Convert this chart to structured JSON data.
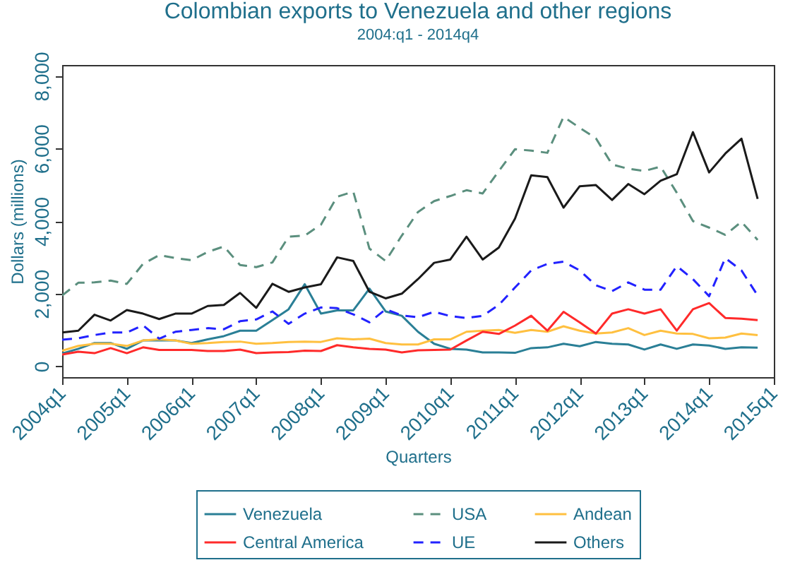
{
  "chart_data": {
    "type": "line",
    "title": "Colombian exports to Venezuela and other regions",
    "subtitle": "2004:q1 - 2014q4",
    "xlabel": "Quarters",
    "ylabel": "Dollars (millions)",
    "categories": [
      "2004q1",
      null,
      null,
      null,
      "2005q1",
      null,
      null,
      null,
      "2006q1",
      null,
      null,
      null,
      "2007q1",
      null,
      null,
      null,
      "2008q1",
      null,
      null,
      null,
      "2009q1",
      null,
      null,
      null,
      "2010q1",
      null,
      null,
      null,
      "2011q1",
      null,
      null,
      null,
      "2012q1",
      null,
      null,
      null,
      "2013q1",
      null,
      null,
      null,
      "2014q1",
      null,
      null,
      null,
      "2015q1"
    ],
    "series": [
      {
        "name": "Venezuela",
        "color": "#2a7f96",
        "line_style": "solid",
        "values": [
          350,
          480,
          640,
          640,
          480,
          710,
          710,
          710,
          640,
          740,
          830,
          980,
          980,
          1270,
          1570,
          2260,
          1450,
          1540,
          1540,
          2140,
          1510,
          1390,
          950,
          620,
          480,
          460,
          380,
          380,
          370,
          500,
          520,
          620,
          550,
          670,
          620,
          600,
          460,
          600,
          480,
          600,
          570,
          480,
          520,
          510,
          null
        ]
      },
      {
        "name": "USA",
        "color": "#5b8f7e",
        "line_style": "dashed",
        "values": [
          1950,
          2300,
          2310,
          2360,
          2270,
          2820,
          3060,
          2980,
          2920,
          3150,
          3300,
          2790,
          2730,
          2860,
          3570,
          3600,
          3900,
          4670,
          4810,
          3240,
          2900,
          3600,
          4250,
          4550,
          4690,
          4850,
          4760,
          5380,
          5980,
          5940,
          5880,
          6870,
          6570,
          6280,
          5560,
          5440,
          5380,
          5500,
          4780,
          4000,
          3820,
          3620,
          3980,
          3480,
          null
        ]
      },
      {
        "name": "Andean",
        "color": "#ffc040",
        "line_style": "solid",
        "values": [
          430,
          560,
          620,
          620,
          560,
          710,
          740,
          710,
          620,
          640,
          670,
          680,
          620,
          640,
          670,
          680,
          670,
          770,
          740,
          760,
          640,
          600,
          600,
          740,
          740,
          950,
          980,
          1000,
          920,
          1000,
          950,
          1100,
          980,
          900,
          930,
          1050,
          860,
          980,
          900,
          890,
          770,
          790,
          900,
          860,
          null
        ]
      },
      {
        "name": "Central America",
        "color": "#ff2a2a",
        "line_style": "solid",
        "values": [
          320,
          400,
          360,
          500,
          360,
          520,
          450,
          450,
          450,
          420,
          420,
          460,
          360,
          380,
          390,
          430,
          420,
          580,
          520,
          480,
          460,
          380,
          440,
          450,
          460,
          710,
          950,
          890,
          1120,
          1390,
          980,
          1500,
          1210,
          900,
          1450,
          1570,
          1450,
          1570,
          980,
          1570,
          1740,
          1330,
          1310,
          1270,
          null
        ]
      },
      {
        "name": "UE",
        "color": "#2222ff",
        "line_style": "dashed",
        "values": [
          730,
          770,
          860,
          930,
          930,
          1130,
          760,
          950,
          1000,
          1050,
          1020,
          1240,
          1290,
          1510,
          1170,
          1450,
          1620,
          1600,
          1430,
          1210,
          1570,
          1400,
          1350,
          1500,
          1380,
          1330,
          1390,
          1690,
          2170,
          2640,
          2820,
          2880,
          2640,
          2230,
          2070,
          2310,
          2110,
          2110,
          2760,
          2400,
          1930,
          2980,
          2640,
          1950,
          null
        ]
      },
      {
        "name": "Others",
        "color": "#1a1a1a",
        "line_style": "solid",
        "values": [
          930,
          980,
          1420,
          1260,
          1550,
          1450,
          1300,
          1450,
          1450,
          1660,
          1690,
          2020,
          1610,
          2270,
          2050,
          2170,
          2260,
          3000,
          2900,
          2050,
          1870,
          2000,
          2400,
          2850,
          2940,
          3570,
          2940,
          3270,
          4070,
          5260,
          5210,
          4370,
          4960,
          4990,
          4580,
          5020,
          4740,
          5110,
          5290,
          6450,
          5340,
          5860,
          6270,
          4610,
          null
        ]
      }
    ],
    "ylim": [
      -300,
      8300
    ],
    "yticks": [
      0,
      {
        "value": 2000,
        "label": "2,000"
      },
      {
        "value": 4000,
        "label": "4,000"
      },
      {
        "value": 6000,
        "label": "6,000"
      },
      {
        "value": 8000,
        "label": "8,000"
      }
    ],
    "grid": false,
    "legend": "bottom"
  }
}
